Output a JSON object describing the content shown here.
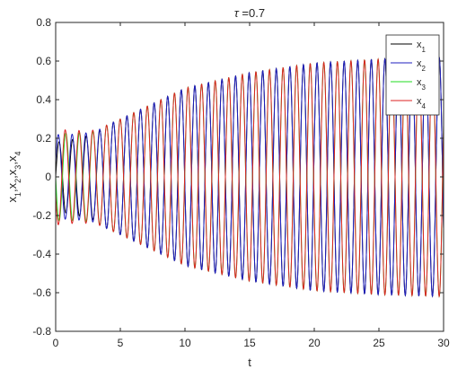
{
  "chart_data": {
    "type": "line",
    "title_symbol": "τ",
    "title_value": " =0.7",
    "xlabel": "t",
    "ylabel": "x",
    "ylabel_parts": [
      {
        "text": "x",
        "sub": "1"
      },
      {
        "text": ",x",
        "sub": "2"
      },
      {
        "text": ",x",
        "sub": "3"
      },
      {
        "text": ",x",
        "sub": "4"
      }
    ],
    "xlim": [
      0,
      30
    ],
    "ylim": [
      -0.8,
      0.8
    ],
    "xticks": [
      0,
      5,
      10,
      15,
      20,
      25,
      30
    ],
    "xtick_labels": [
      "0",
      "5",
      "10",
      "15",
      "20",
      "25",
      "30"
    ],
    "yticks": [
      -0.8,
      -0.6,
      -0.4,
      -0.2,
      0,
      0.2,
      0.4,
      0.6,
      0.8
    ],
    "ytick_labels": [
      "-0.8",
      "-0.6",
      "-0.4",
      "-0.2",
      "0",
      "0.2",
      "0.4",
      "0.6",
      "0.8"
    ],
    "grid": false,
    "legend_position": "top-right",
    "oscillation": {
      "period": 1.05,
      "envelope": [
        {
          "t": 0,
          "amp": 0.2
        },
        {
          "t": 1,
          "amp": 0.22
        },
        {
          "t": 3,
          "amp": 0.24
        },
        {
          "t": 5,
          "amp": 0.3
        },
        {
          "t": 10,
          "amp": 0.46
        },
        {
          "t": 15,
          "amp": 0.54
        },
        {
          "t": 20,
          "amp": 0.59
        },
        {
          "t": 25,
          "amp": 0.61
        },
        {
          "t": 30,
          "amp": 0.62
        }
      ],
      "sync_time": 4
    },
    "series": [
      {
        "name": "x",
        "sub": "1",
        "color": "#000000",
        "initial_amplitude": 0.18,
        "phase": 0
      },
      {
        "name": "x",
        "sub": "2",
        "color": "#1f1fbf",
        "initial_amplitude": 0.22,
        "phase": 0.35
      },
      {
        "name": "x",
        "sub": "3",
        "color": "#22dd22",
        "initial_amplitude": 0.23,
        "phase": 3.14
      },
      {
        "name": "x",
        "sub": "4",
        "color": "#dd2222",
        "initial_amplitude": 0.25,
        "phase": 3.5
      }
    ]
  }
}
